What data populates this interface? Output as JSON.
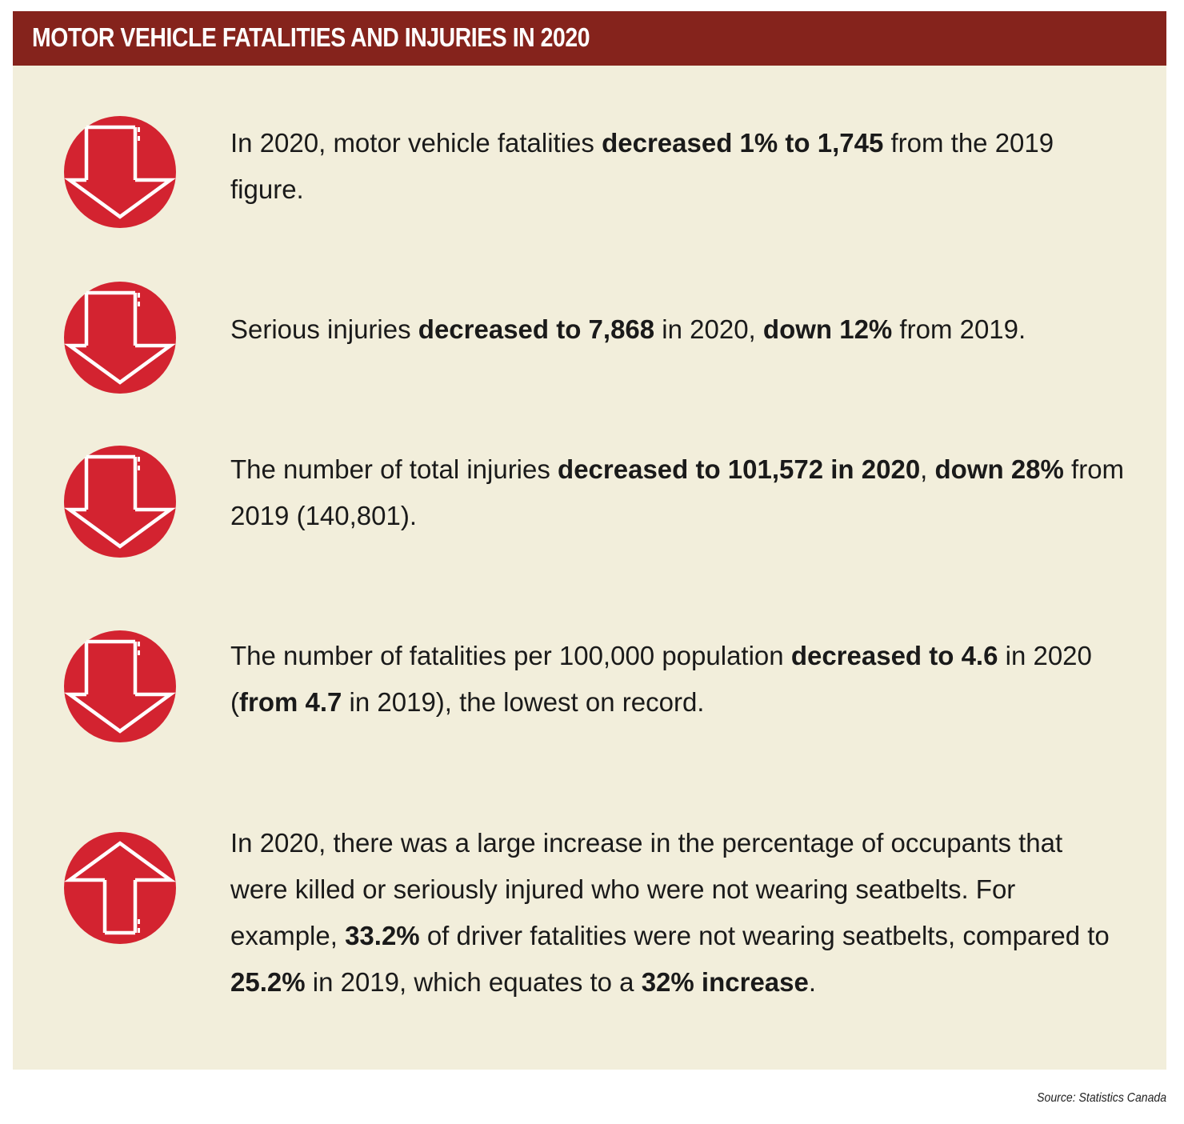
{
  "title": "MOTOR VEHICLE FATALITIES AND INJURIES IN 2020",
  "colors": {
    "header_bar": "#85231c",
    "panel_background": "#f2eedb",
    "icon_circle": "#d32330"
  },
  "items": [
    {
      "icon": "arrow-down-icon",
      "segments": [
        {
          "text": "In 2020, motor vehicle fatalities ",
          "bold": false
        },
        {
          "text": "decreased 1% to 1,745",
          "bold": true
        },
        {
          "text": " from the 2019 figure.",
          "bold": false
        }
      ]
    },
    {
      "icon": "arrow-down-icon",
      "segments": [
        {
          "text": "Serious injuries ",
          "bold": false
        },
        {
          "text": "decreased to 7,868",
          "bold": true
        },
        {
          "text": " in 2020, ",
          "bold": false
        },
        {
          "text": "down 12%",
          "bold": true
        },
        {
          "text": " from 2019.",
          "bold": false
        }
      ]
    },
    {
      "icon": "arrow-down-icon",
      "segments": [
        {
          "text": "The number of total injuries ",
          "bold": false
        },
        {
          "text": "decreased to 101,572 in 2020",
          "bold": true
        },
        {
          "text": ", ",
          "bold": false
        },
        {
          "text": "down 28%",
          "bold": true
        },
        {
          "text": " from 2019 (140,801).",
          "bold": false
        }
      ]
    },
    {
      "icon": "arrow-down-icon",
      "segments": [
        {
          "text": "The number of fatalities per 100,000 population ",
          "bold": false
        },
        {
          "text": "decreased to 4.6",
          "bold": true
        },
        {
          "text": " in 2020 (",
          "bold": false
        },
        {
          "text": "from 4.7",
          "bold": true
        },
        {
          "text": " in 2019), the lowest on record.",
          "bold": false
        }
      ]
    },
    {
      "icon": "arrow-up-icon",
      "segments": [
        {
          "text": "In 2020, there was a large increase in the percentage of occupants that were killed or seriously injured who were not wearing seatbelts. For example, ",
          "bold": false
        },
        {
          "text": "33.2%",
          "bold": true
        },
        {
          "text": " of driver fatalities were not wearing seatbelts, compared to ",
          "bold": false
        },
        {
          "text": "25.2%",
          "bold": true
        },
        {
          "text": " in 2019, which equates to a ",
          "bold": false
        },
        {
          "text": "32% increase",
          "bold": true
        },
        {
          "text": ".",
          "bold": false
        }
      ]
    }
  ],
  "source": "Source: Statistics Canada"
}
